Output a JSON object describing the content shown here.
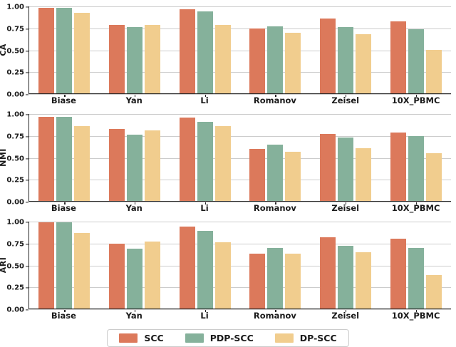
{
  "figure": {
    "background": "#ffffff",
    "grid_color": "#cccccc",
    "spine_color": "#262626",
    "text_color": "#1a1a1a"
  },
  "chart_data": [
    {
      "type": "bar",
      "ylabel": "CA",
      "categories": [
        "Biase",
        "Yan",
        "Li",
        "Romanov",
        "Zeisel",
        "10X_PBMC"
      ],
      "ylim": [
        0,
        1
      ],
      "ytick_labels": [
        "1.00",
        "0.75",
        "0.50",
        "0.25",
        "0.00"
      ],
      "grid": true,
      "series": [
        {
          "name": "SCC",
          "color": "#DC795B",
          "values": [
            0.98,
            0.79,
            0.97,
            0.75,
            0.86,
            0.83
          ]
        },
        {
          "name": "PDP-SCC",
          "color": "#85B19B",
          "values": [
            0.98,
            0.76,
            0.94,
            0.77,
            0.76,
            0.74
          ]
        },
        {
          "name": "DP-SCC",
          "color": "#F1CD8E",
          "values": [
            0.93,
            0.79,
            0.79,
            0.7,
            0.68,
            0.5
          ]
        }
      ]
    },
    {
      "type": "bar",
      "ylabel": "NMI",
      "categories": [
        "Biase",
        "Yan",
        "Li",
        "Romanov",
        "Zeisel",
        "10X_PBMC"
      ],
      "ylim": [
        0,
        1
      ],
      "ytick_labels": [
        "1.00",
        "0.75",
        "0.50",
        "0.25",
        "0.00"
      ],
      "grid": true,
      "series": [
        {
          "name": "SCC",
          "color": "#DC795B",
          "values": [
            0.97,
            0.83,
            0.96,
            0.6,
            0.77,
            0.79
          ]
        },
        {
          "name": "PDP-SCC",
          "color": "#85B19B",
          "values": [
            0.97,
            0.76,
            0.91,
            0.65,
            0.73,
            0.75
          ]
        },
        {
          "name": "DP-SCC",
          "color": "#F1CD8E",
          "values": [
            0.86,
            0.81,
            0.86,
            0.57,
            0.61,
            0.55
          ]
        }
      ]
    },
    {
      "type": "bar",
      "ylabel": "ARI",
      "categories": [
        "Biase",
        "Yan",
        "Li",
        "Romanov",
        "Zeisel",
        "10X_PBMC"
      ],
      "ylim": [
        0,
        1
      ],
      "ytick_labels": [
        "1.00",
        "0.75",
        "0.50",
        "0.25",
        "0.00"
      ],
      "grid": true,
      "series": [
        {
          "name": "SCC",
          "color": "#DC795B",
          "values": [
            0.99,
            0.75,
            0.94,
            0.63,
            0.82,
            0.8
          ]
        },
        {
          "name": "PDP-SCC",
          "color": "#85B19B",
          "values": [
            0.99,
            0.69,
            0.89,
            0.7,
            0.72,
            0.7
          ]
        },
        {
          "name": "DP-SCC",
          "color": "#F1CD8E",
          "values": [
            0.87,
            0.77,
            0.76,
            0.63,
            0.65,
            0.39
          ]
        }
      ]
    }
  ],
  "legend": {
    "position": "bottom-center",
    "items": [
      {
        "label": "SCC",
        "color": "#DC795B"
      },
      {
        "label": "PDP-SCC",
        "color": "#85B19B"
      },
      {
        "label": "DP-SCC",
        "color": "#F1CD8E"
      }
    ]
  }
}
